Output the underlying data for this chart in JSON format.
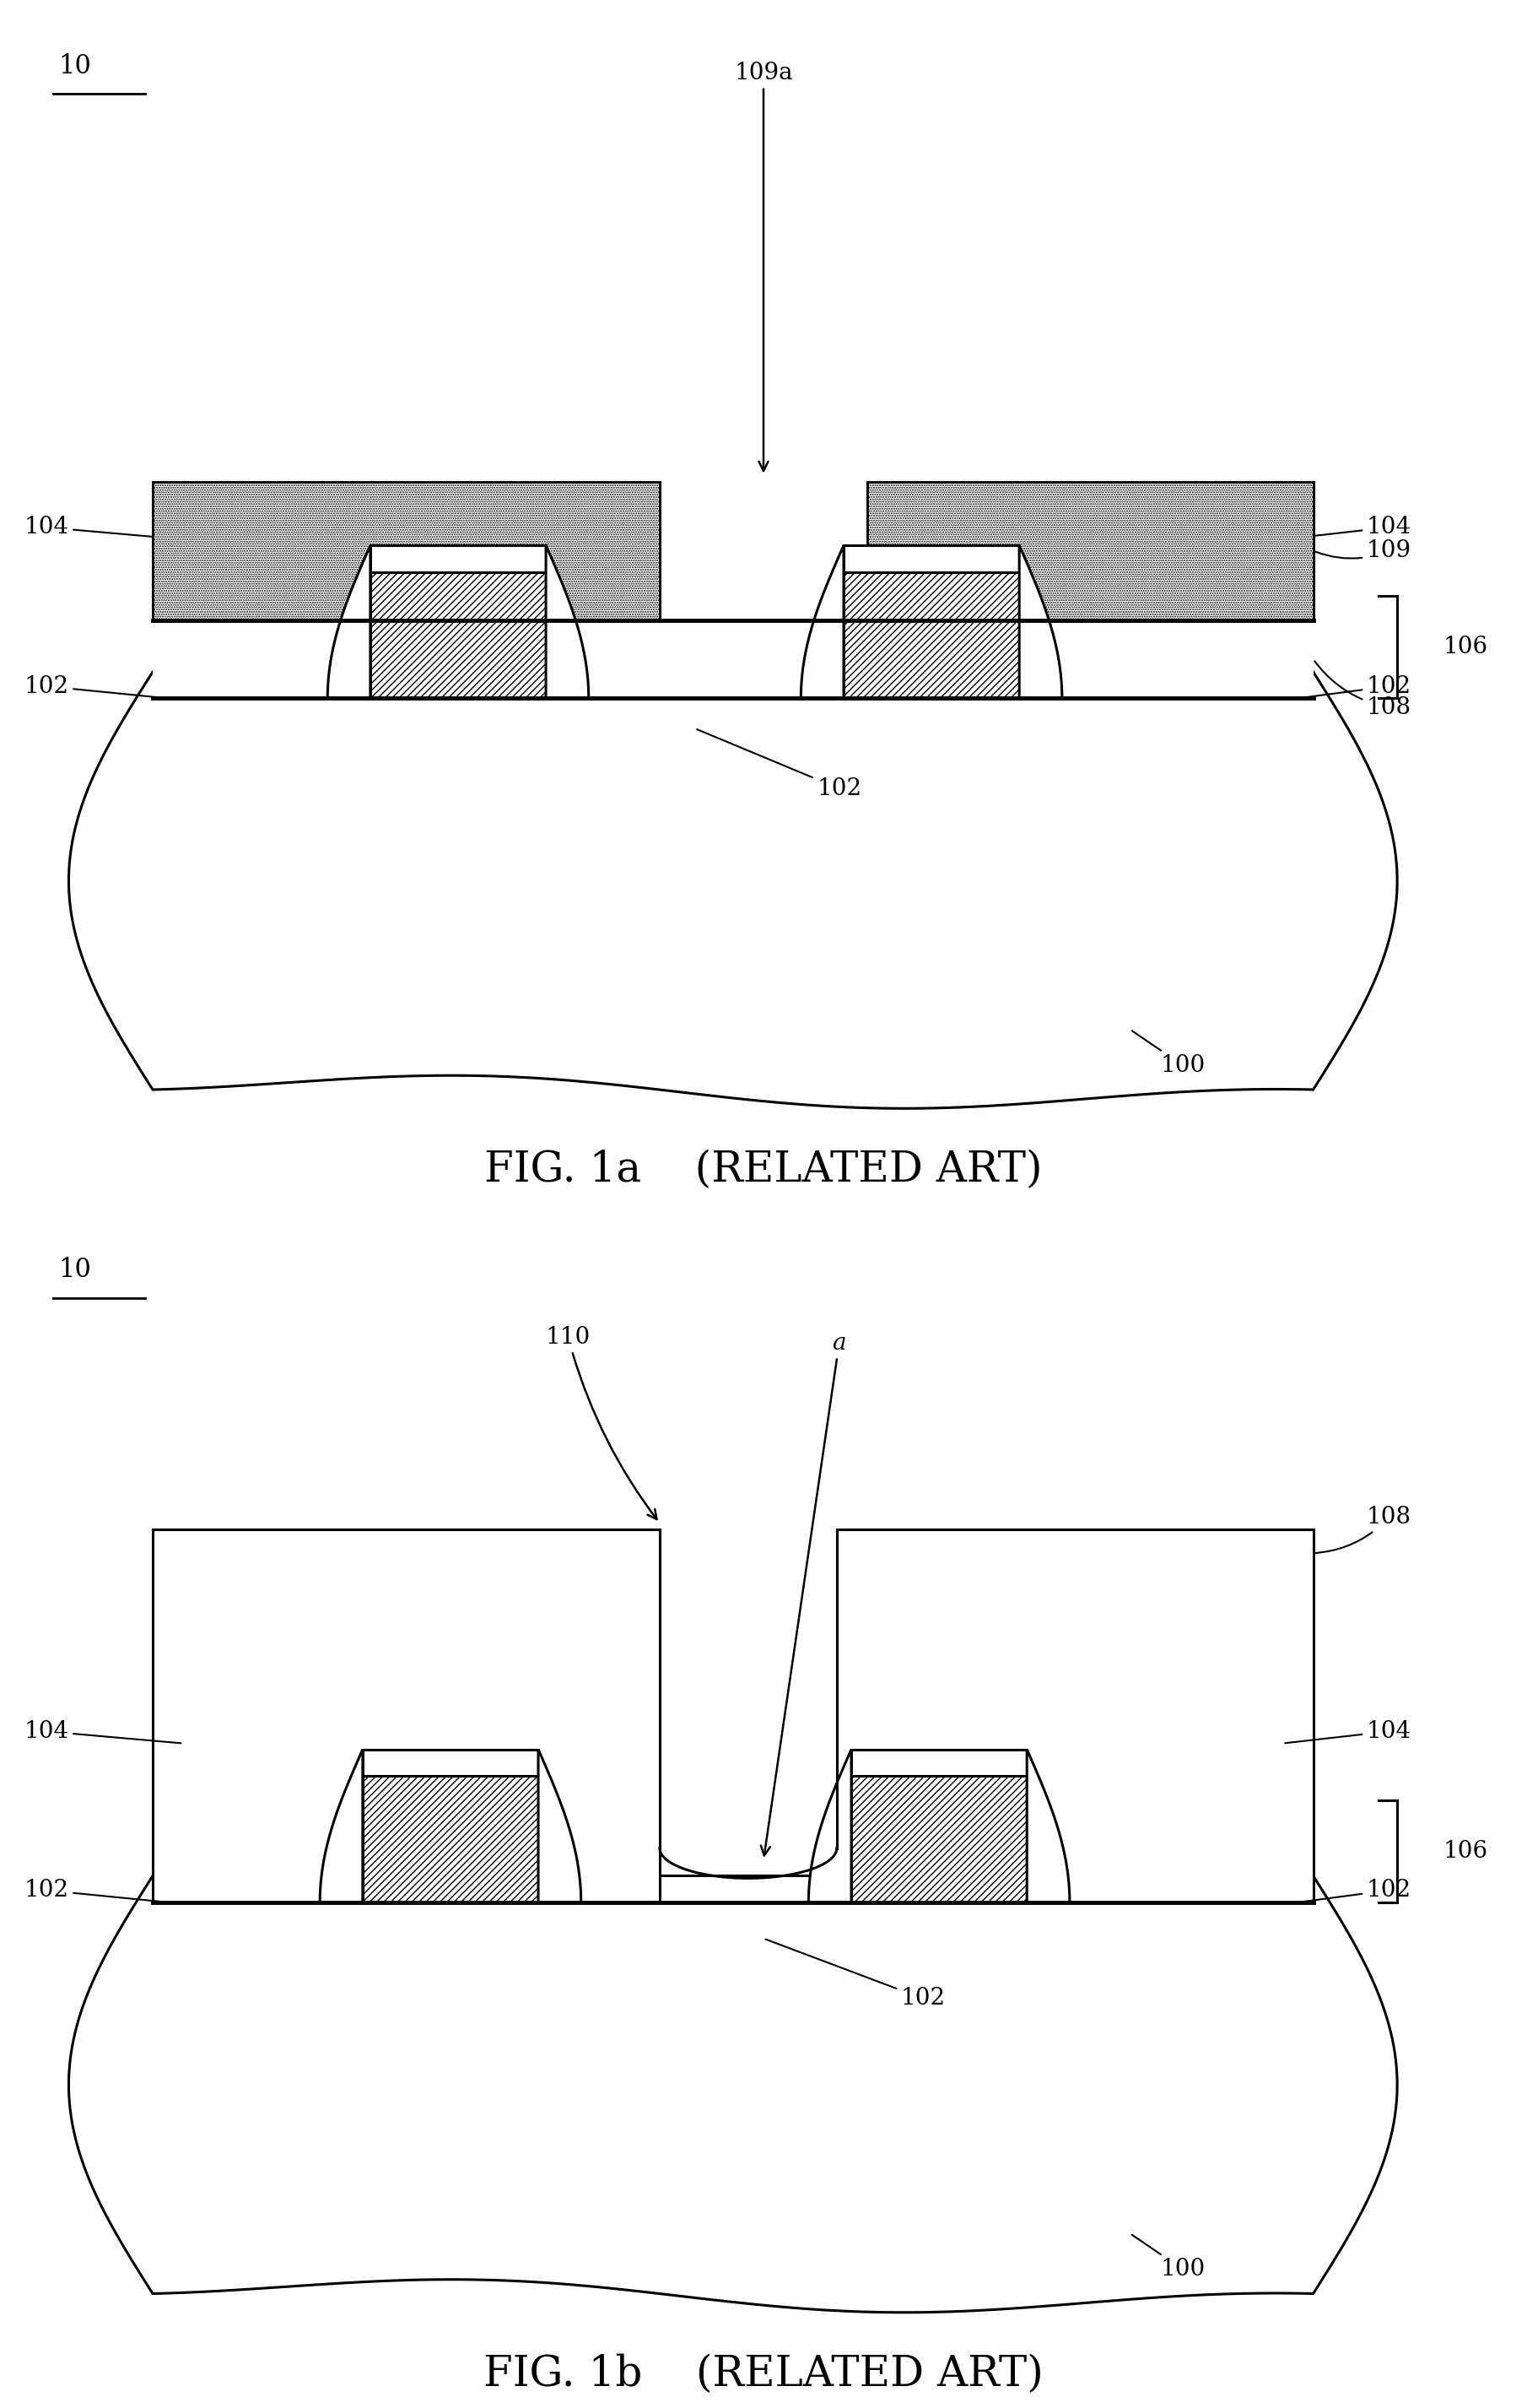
{
  "bg_color": "#ffffff",
  "lw": 2.2,
  "lw_thick": 3.5,
  "fig1a_title": "FIG. 1a    (RELATED ART)",
  "fig1b_title": "FIG. 1b    (RELATED ART)",
  "fs": 20,
  "fs_title": 36,
  "fs_label10": 22
}
